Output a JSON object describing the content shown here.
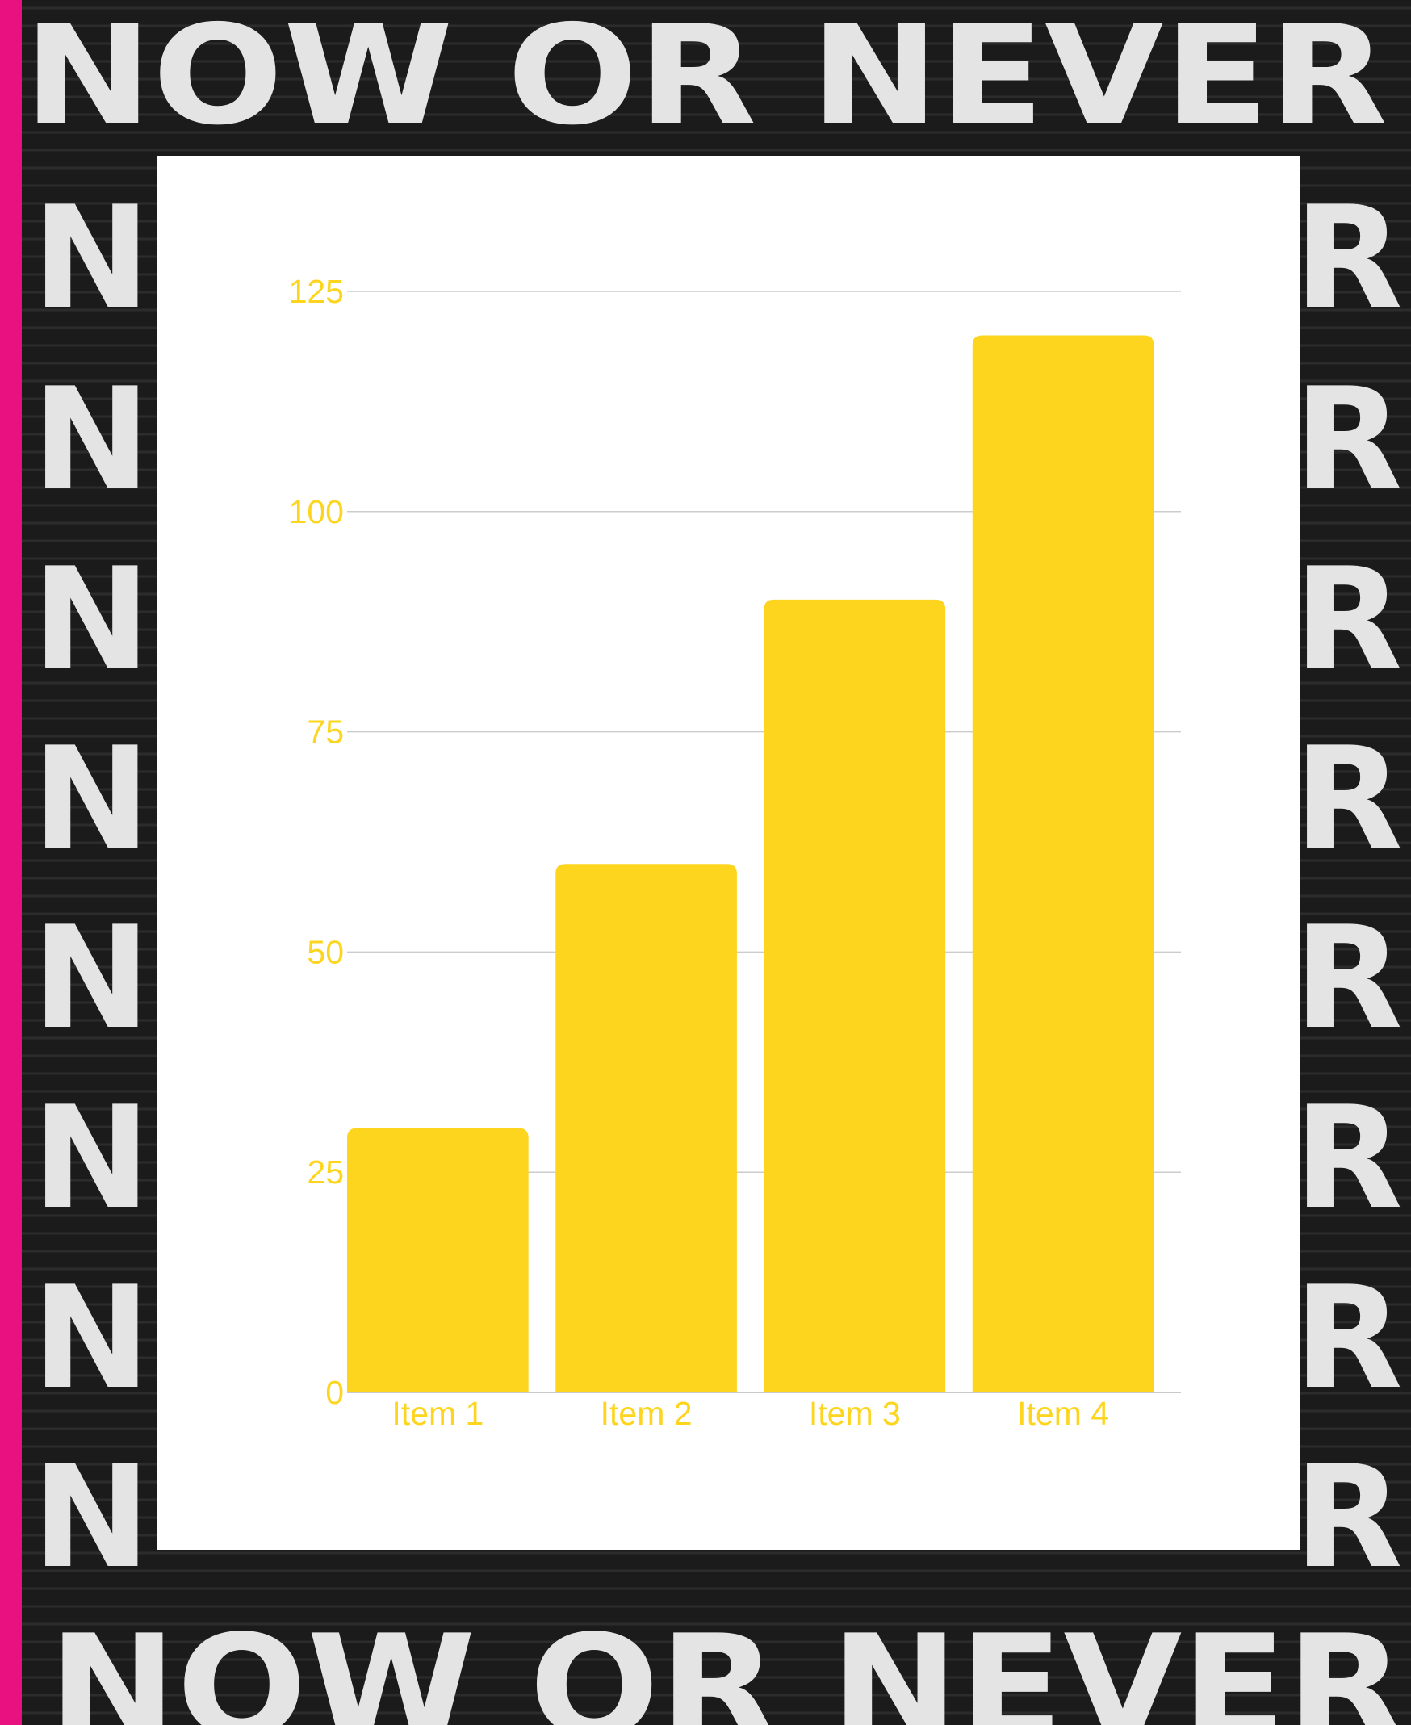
{
  "poster": {
    "text": "NOW OR NEVER",
    "side_letter_left": "N",
    "side_letter_right": "R",
    "colors": {
      "wall": "#1b1b1b",
      "brick_line": "#2c2c2c",
      "paint": "#e4e4e4",
      "stripe": "#e8117f",
      "card": "#ffffff"
    }
  },
  "chart_data": {
    "type": "bar",
    "categories": [
      "Item 1",
      "Item 2",
      "Item 3",
      "Item 4"
    ],
    "values": [
      30,
      60,
      90,
      120
    ],
    "ylim": [
      0,
      125
    ],
    "yticks": [
      "0",
      "25",
      "50",
      "75",
      "100",
      "125"
    ],
    "title": "",
    "xlabel": "",
    "ylabel": "",
    "grid": true,
    "legend": "none",
    "colors": {
      "bar": "#fed51e",
      "text": "#fed51e",
      "grid": "#cccccc",
      "axis": "#b8b8b8"
    }
  }
}
